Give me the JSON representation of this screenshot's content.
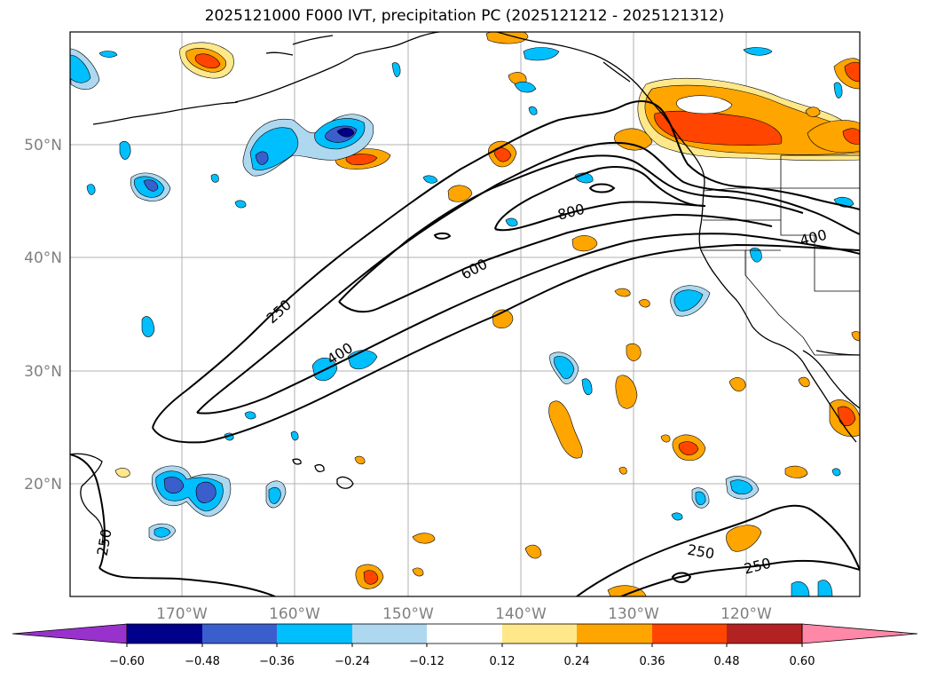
{
  "title": "2025121000 F000 IVT, precipitation PC (2025121212 - 2025121312)",
  "map": {
    "lat_labels": [
      "50°N",
      "40°N",
      "30°N",
      "20°N"
    ],
    "lon_labels": [
      "170°W",
      "160°W",
      "150°W",
      "140°W",
      "130°W",
      "120°W"
    ],
    "lon_range": [
      -180,
      -110
    ],
    "lat_range": [
      10,
      60
    ],
    "ivt_contour_labels": [
      "250",
      "400",
      "600",
      "800",
      "400",
      "250",
      "250",
      "250"
    ],
    "ivt_contour_levels": [
      250,
      400,
      600,
      800
    ]
  },
  "colorbar": {
    "tick_labels": [
      "−0.60",
      "−0.48",
      "−0.36",
      "−0.24",
      "−0.12",
      "0.12",
      "0.24",
      "0.36",
      "0.48",
      "0.60"
    ],
    "colors": [
      "#9932cc",
      "#00008b",
      "#3a5fcd",
      "#00bfff",
      "#add8f0",
      "#ffffff",
      "#ffe88a",
      "#ffa500",
      "#ff4500",
      "#b22222",
      "#ff88a8"
    ]
  },
  "colors": {
    "grid": "#b0b0b0",
    "coast": "#000000",
    "ivt": "#000000"
  }
}
